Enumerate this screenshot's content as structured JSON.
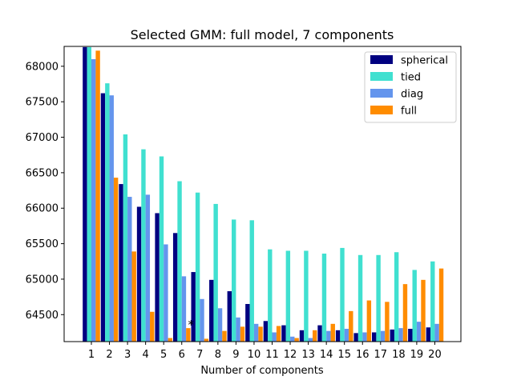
{
  "chart_data": {
    "type": "bar",
    "title": "Selected GMM: full model, 7 components",
    "xlabel": "Number of components",
    "ylabel": "",
    "ylim": [
      64120,
      68280
    ],
    "yticks": [
      64500,
      65000,
      65500,
      66000,
      66500,
      67000,
      67500,
      68000
    ],
    "categories": [
      "1",
      "2",
      "3",
      "4",
      "5",
      "6",
      "7",
      "8",
      "9",
      "10",
      "11",
      "12",
      "13",
      "14",
      "15",
      "16",
      "17",
      "18",
      "19",
      "20"
    ],
    "legend_position": "top-right",
    "series": [
      {
        "name": "spherical",
        "color": "#000080",
        "values": [
          68270,
          67620,
          66340,
          66020,
          65930,
          65650,
          65100,
          64990,
          64830,
          64650,
          64410,
          64350,
          64280,
          64350,
          64280,
          64240,
          64250,
          64290,
          64300,
          64320
        ]
      },
      {
        "name": "tied",
        "color": "#40e0d0",
        "values": [
          68270,
          67760,
          67040,
          66830,
          66730,
          66380,
          66220,
          66060,
          65840,
          65830,
          65420,
          65400,
          65400,
          65360,
          65440,
          65340,
          65340,
          65380,
          65130,
          65250
        ]
      },
      {
        "name": "diag",
        "color": "#6495ed",
        "values": [
          68100,
          67590,
          66160,
          66190,
          65490,
          65040,
          64720,
          64590,
          64460,
          64370,
          64250,
          64190,
          64170,
          64270,
          64300,
          64250,
          64270,
          64310,
          64400,
          64370
        ]
      },
      {
        "name": "full",
        "color": "#ff8c00",
        "values": [
          68220,
          66430,
          65390,
          64540,
          64170,
          64310,
          64160,
          64270,
          64330,
          64330,
          64340,
          64170,
          64280,
          64370,
          64550,
          64700,
          64680,
          64930,
          64990,
          65150
        ]
      }
    ],
    "marker": {
      "symbol": "*",
      "category": "7",
      "value": 64390
    }
  }
}
